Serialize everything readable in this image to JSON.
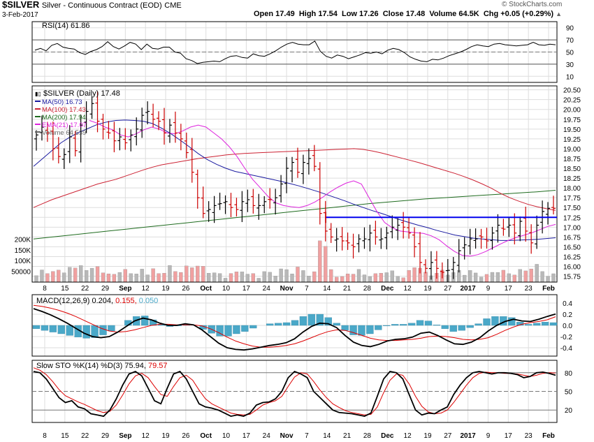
{
  "header": {
    "symbol": "$SILVER",
    "description": "Silver - Continuous Contract (EOD)",
    "exchange": "CME",
    "date": "3-Feb-2017",
    "open": "Open 17.49",
    "high": "High 17.54",
    "low": "Low 17.26",
    "close": "Close 17.48",
    "volume": "Volume 64.5K",
    "change": "Chg +0.05 (+0.29%)",
    "change_arrow": "▲",
    "copyright": "© StockCharts.com"
  },
  "colors": {
    "up_bar": "#000000",
    "down_bar": "#cc0000",
    "ma50": "#1a1aa0",
    "ma100": "#cc2233",
    "ma200": "#1e6b1e",
    "ema21": "#dd22dd",
    "horizontal_line": "#0000ee",
    "volume_up": "#b8b8b8",
    "volume_down": "#f0a0a0",
    "macd_hist": "#4aa8c8",
    "macd_signal": "#dd0000",
    "grid": "#dddddd"
  },
  "chart_data": [
    {
      "type": "line",
      "panel": "rsi",
      "label": "RSI(14) 61.86",
      "ylim": [
        0,
        100
      ],
      "yticks": [
        "90",
        "70",
        "50",
        "30",
        "10"
      ],
      "levels": [
        70,
        30
      ],
      "series": [
        {
          "name": "RSI(14)",
          "values": [
            53,
            56,
            52,
            61,
            64,
            58,
            56,
            55,
            49,
            46,
            51,
            54,
            59,
            67,
            59,
            55,
            60,
            66,
            63,
            54,
            63,
            56,
            55,
            58,
            58,
            50,
            48,
            39,
            36,
            31,
            33,
            34,
            35,
            34,
            39,
            43,
            44,
            41,
            40,
            47,
            44,
            43,
            47,
            52,
            58,
            63,
            66,
            63,
            62,
            62,
            68,
            51,
            43,
            40,
            45,
            43,
            39,
            42,
            45,
            49,
            48,
            50,
            47,
            53,
            56,
            54,
            49,
            42,
            38,
            35,
            34,
            38,
            37,
            40,
            44,
            47,
            50,
            54,
            59,
            62,
            60,
            59,
            63,
            64,
            62,
            61,
            60,
            61,
            62,
            66,
            62,
            61,
            63,
            62
          ]
        }
      ]
    },
    {
      "type": "bar",
      "panel": "price",
      "title": "$SILVER (Daily) 17.48",
      "legend": [
        "MA(50) 16.73",
        "MA(100) 17.43",
        "MA(200) 17.94",
        "EMA(21) 17.07",
        "Volume 64,539"
      ],
      "ylim": [
        15.6,
        20.6
      ],
      "yticks": [
        "20.50",
        "20.25",
        "20.00",
        "19.75",
        "19.50",
        "19.25",
        "19.00",
        "18.75",
        "18.50",
        "18.25",
        "18.00",
        "17.75",
        "17.50",
        "17.25",
        "17.00",
        "16.75",
        "16.50",
        "16.25",
        "16.00",
        "15.75"
      ],
      "volume_ticks": [
        "200K",
        "150K",
        "100K",
        "50000"
      ],
      "close": [
        19.35,
        19.55,
        19.4,
        19.0,
        18.8,
        18.85,
        19.3,
        18.95,
        19.6,
        19.95,
        20.15,
        19.7,
        19.5,
        19.4,
        19.2,
        19.3,
        19.15,
        19.35,
        19.5,
        19.85,
        19.95,
        19.75,
        19.7,
        19.4,
        19.6,
        19.4,
        19.25,
        18.9,
        18.4,
        17.75,
        17.35,
        17.45,
        17.55,
        17.6,
        17.65,
        17.5,
        17.45,
        17.65,
        17.7,
        17.55,
        17.55,
        17.65,
        17.7,
        17.75,
        18.1,
        18.5,
        18.65,
        18.4,
        18.65,
        18.75,
        18.55,
        17.35,
        16.9,
        16.75,
        16.7,
        16.65,
        16.6,
        16.5,
        16.7,
        16.7,
        16.85,
        16.75,
        16.7,
        16.85,
        17.0,
        17.05,
        17.0,
        16.85,
        16.5,
        16.1,
        15.95,
        16.1,
        15.95,
        15.85,
        15.9,
        16.1,
        16.4,
        16.55,
        16.7,
        16.7,
        16.75,
        16.65,
        16.85,
        17.05,
        16.95,
        17.05,
        16.85,
        17.15,
        16.9,
        16.6,
        17.05,
        17.4,
        17.48,
        17.48
      ],
      "series": [
        {
          "name": "MA(50) 16.73",
          "values": [
            18.55,
            18.75,
            18.95,
            19.15,
            19.3,
            19.42,
            19.52,
            19.62,
            19.68,
            19.72,
            19.73,
            19.72,
            19.7,
            19.64,
            19.52,
            19.38,
            19.22,
            19.05,
            18.87,
            18.72,
            18.6,
            18.5,
            18.42,
            18.37,
            18.32,
            18.27,
            18.22,
            18.17,
            18.11,
            18.05,
            17.98,
            17.91,
            17.83,
            17.75,
            17.67,
            17.58,
            17.5,
            17.42,
            17.35,
            17.27,
            17.19,
            17.12,
            17.05,
            16.99,
            16.92,
            16.86,
            16.8,
            16.76,
            16.72,
            16.7,
            16.68,
            16.66,
            16.66,
            16.67,
            16.68,
            16.69,
            16.71,
            16.73
          ]
        },
        {
          "name": "MA(100) 17.43",
          "values": [
            17.5,
            17.6,
            17.7,
            17.78,
            17.86,
            17.94,
            18.02,
            18.1,
            18.16,
            18.22,
            18.3,
            18.38,
            18.46,
            18.53,
            18.59,
            18.63,
            18.67,
            18.71,
            18.75,
            18.78,
            18.81,
            18.84,
            18.86,
            18.88,
            18.89,
            18.9,
            18.91,
            18.92,
            18.93,
            18.94,
            18.95,
            18.96,
            18.97,
            18.98,
            18.99,
            19.0,
            18.98,
            18.94,
            18.89,
            18.83,
            18.77,
            18.71,
            18.65,
            18.58,
            18.51,
            18.44,
            18.37,
            18.29,
            18.2,
            18.1,
            17.99,
            17.86,
            17.75,
            17.66,
            17.58,
            17.52,
            17.47,
            17.43
          ]
        },
        {
          "name": "MA(200) 17.94",
          "values": [
            16.7,
            16.75,
            16.8,
            16.85,
            16.9,
            16.95,
            17.0,
            17.05,
            17.1,
            17.15,
            17.2,
            17.25,
            17.3,
            17.35,
            17.4,
            17.45,
            17.5,
            17.55,
            17.6,
            17.64,
            17.68,
            17.72,
            17.75,
            17.78,
            17.81,
            17.84,
            17.87,
            17.9,
            17.94
          ]
        },
        {
          "name": "EMA(21) 17.07",
          "values": [
            19.72,
            19.65,
            19.55,
            19.48,
            19.35,
            19.3,
            19.38,
            19.48,
            19.55,
            19.5,
            19.4,
            19.38,
            19.45,
            19.55,
            19.6,
            19.55,
            19.4,
            19.25,
            19.05,
            18.8,
            18.5,
            18.22,
            18.0,
            17.78,
            17.62,
            17.55,
            17.52,
            17.5,
            17.55,
            17.64,
            17.76,
            17.9,
            18.02,
            18.12,
            18.18,
            18.1,
            17.75,
            17.4,
            17.12,
            16.98,
            16.9,
            16.88,
            16.86,
            16.84,
            16.78,
            16.68,
            16.52,
            16.38,
            16.28,
            16.26,
            16.3,
            16.38,
            16.48,
            16.58,
            16.67,
            16.74,
            16.8,
            16.86,
            16.94,
            17.02,
            17.07
          ]
        }
      ],
      "horizontal_line": {
        "value": 17.25
      }
    },
    {
      "type": "line",
      "panel": "macd",
      "label_prefix": "MACD(12,26,9)",
      "label_macd": "0.204",
      "label_signal": "0.155",
      "label_hist": "0.050",
      "ylim": [
        -0.55,
        0.55
      ],
      "yticks": [
        "0.4",
        "0.2",
        "0.0",
        "-0.2",
        "-0.4"
      ],
      "series": [
        {
          "name": "MACD",
          "values": [
            0.3,
            0.25,
            0.19,
            0.12,
            0.04,
            -0.05,
            -0.14,
            -0.2,
            -0.22,
            -0.2,
            -0.12,
            -0.02,
            0.08,
            0.13,
            0.1,
            0.04,
            0.0,
            0.0,
            0.03,
            0.01,
            -0.08,
            -0.2,
            -0.32,
            -0.4,
            -0.43,
            -0.44,
            -0.42,
            -0.39,
            -0.36,
            -0.34,
            -0.31,
            -0.24,
            -0.12,
            -0.02,
            0.04,
            0.03,
            -0.04,
            -0.18,
            -0.3,
            -0.36,
            -0.38,
            -0.34,
            -0.28,
            -0.25,
            -0.24,
            -0.21,
            -0.14,
            -0.12,
            -0.18,
            -0.26,
            -0.33,
            -0.34,
            -0.3,
            -0.22,
            -0.1,
            0.0,
            0.07,
            0.11,
            0.08,
            0.07,
            0.11,
            0.16,
            0.204
          ]
        },
        {
          "name": "Signal",
          "values": [
            0.36,
            0.34,
            0.31,
            0.27,
            0.22,
            0.16,
            0.09,
            0.02,
            -0.05,
            -0.1,
            -0.12,
            -0.11,
            -0.08,
            -0.04,
            0.0,
            0.02,
            0.02,
            0.01,
            0.01,
            0.01,
            -0.01,
            -0.06,
            -0.13,
            -0.21,
            -0.28,
            -0.33,
            -0.37,
            -0.39,
            -0.39,
            -0.38,
            -0.36,
            -0.33,
            -0.28,
            -0.22,
            -0.16,
            -0.11,
            -0.08,
            -0.09,
            -0.13,
            -0.18,
            -0.23,
            -0.26,
            -0.27,
            -0.27,
            -0.26,
            -0.25,
            -0.23,
            -0.2,
            -0.19,
            -0.2,
            -0.22,
            -0.25,
            -0.26,
            -0.25,
            -0.22,
            -0.16,
            -0.09,
            -0.03,
            0.02,
            0.05,
            0.07,
            0.1,
            0.155
          ]
        },
        {
          "name": "Histogram",
          "values": [
            -0.06,
            -0.09,
            -0.12,
            -0.15,
            -0.18,
            -0.21,
            -0.23,
            -0.22,
            -0.17,
            -0.1,
            0.0,
            0.09,
            0.16,
            0.17,
            0.1,
            0.02,
            -0.02,
            -0.01,
            0.02,
            0.0,
            -0.07,
            -0.14,
            -0.19,
            -0.19,
            -0.15,
            -0.11,
            -0.05,
            0.0,
            0.03,
            0.04,
            0.05,
            0.09,
            0.16,
            0.2,
            0.2,
            0.14,
            0.04,
            -0.09,
            -0.17,
            -0.18,
            -0.15,
            -0.08,
            -0.01,
            0.02,
            0.02,
            0.04,
            0.09,
            0.08,
            0.01,
            -0.06,
            -0.11,
            -0.09,
            -0.04,
            0.03,
            0.12,
            0.16,
            0.16,
            0.14,
            0.06,
            0.02,
            0.04,
            0.06,
            0.05
          ]
        }
      ]
    },
    {
      "type": "line",
      "panel": "stochastic",
      "label_prefix": "Slow STO %K(14) %D(3)",
      "label_k": "75.94",
      "label_d": "79.57",
      "ylim": [
        0,
        100
      ],
      "yticks": [
        "80",
        "50",
        "20"
      ],
      "levels": [
        80,
        50,
        20
      ],
      "series": [
        {
          "name": "%K",
          "values": [
            82,
            80,
            70,
            55,
            40,
            32,
            35,
            25,
            22,
            14,
            12,
            10,
            20,
            38,
            60,
            78,
            82,
            75,
            55,
            35,
            30,
            55,
            78,
            82,
            70,
            50,
            30,
            25,
            23,
            20,
            15,
            10,
            12,
            10,
            15,
            28,
            32,
            33,
            38,
            50,
            72,
            82,
            78,
            72,
            50,
            40,
            30,
            20,
            16,
            15,
            14,
            12,
            10,
            15,
            42,
            70,
            82,
            80,
            70,
            45,
            20,
            12,
            15,
            14,
            20,
            25,
            45,
            60,
            72,
            80,
            82,
            80,
            78,
            80,
            80,
            79,
            77,
            72,
            74,
            80,
            81,
            79,
            76
          ]
        },
        {
          "name": "%D",
          "values": [
            88,
            84,
            77,
            66,
            53,
            43,
            38,
            33,
            29,
            24,
            19,
            16,
            18,
            28,
            44,
            62,
            75,
            79,
            72,
            58,
            45,
            42,
            58,
            72,
            76,
            68,
            52,
            38,
            30,
            25,
            20,
            15,
            13,
            12,
            13,
            20,
            28,
            32,
            35,
            42,
            58,
            73,
            80,
            78,
            66,
            52,
            40,
            30,
            24,
            19,
            16,
            14,
            12,
            13,
            25,
            48,
            68,
            78,
            76,
            62,
            42,
            26,
            17,
            14,
            15,
            20,
            32,
            46,
            60,
            72,
            79,
            81,
            80,
            80,
            79,
            79,
            78,
            76,
            74,
            76,
            79,
            80,
            79.6
          ]
        }
      ]
    }
  ],
  "x_axis": {
    "labels": [
      "8",
      "15",
      "22",
      "29",
      "Sep",
      "12",
      "19",
      "26",
      "Oct",
      "10",
      "17",
      "24",
      "Nov",
      "7",
      "14",
      "21",
      "28",
      "Dec",
      "12",
      "19",
      "27",
      "2017",
      "9",
      "17",
      "23",
      "Feb"
    ],
    "bold": [
      "Sep",
      "Oct",
      "Nov",
      "Dec",
      "2017",
      "Feb"
    ]
  }
}
